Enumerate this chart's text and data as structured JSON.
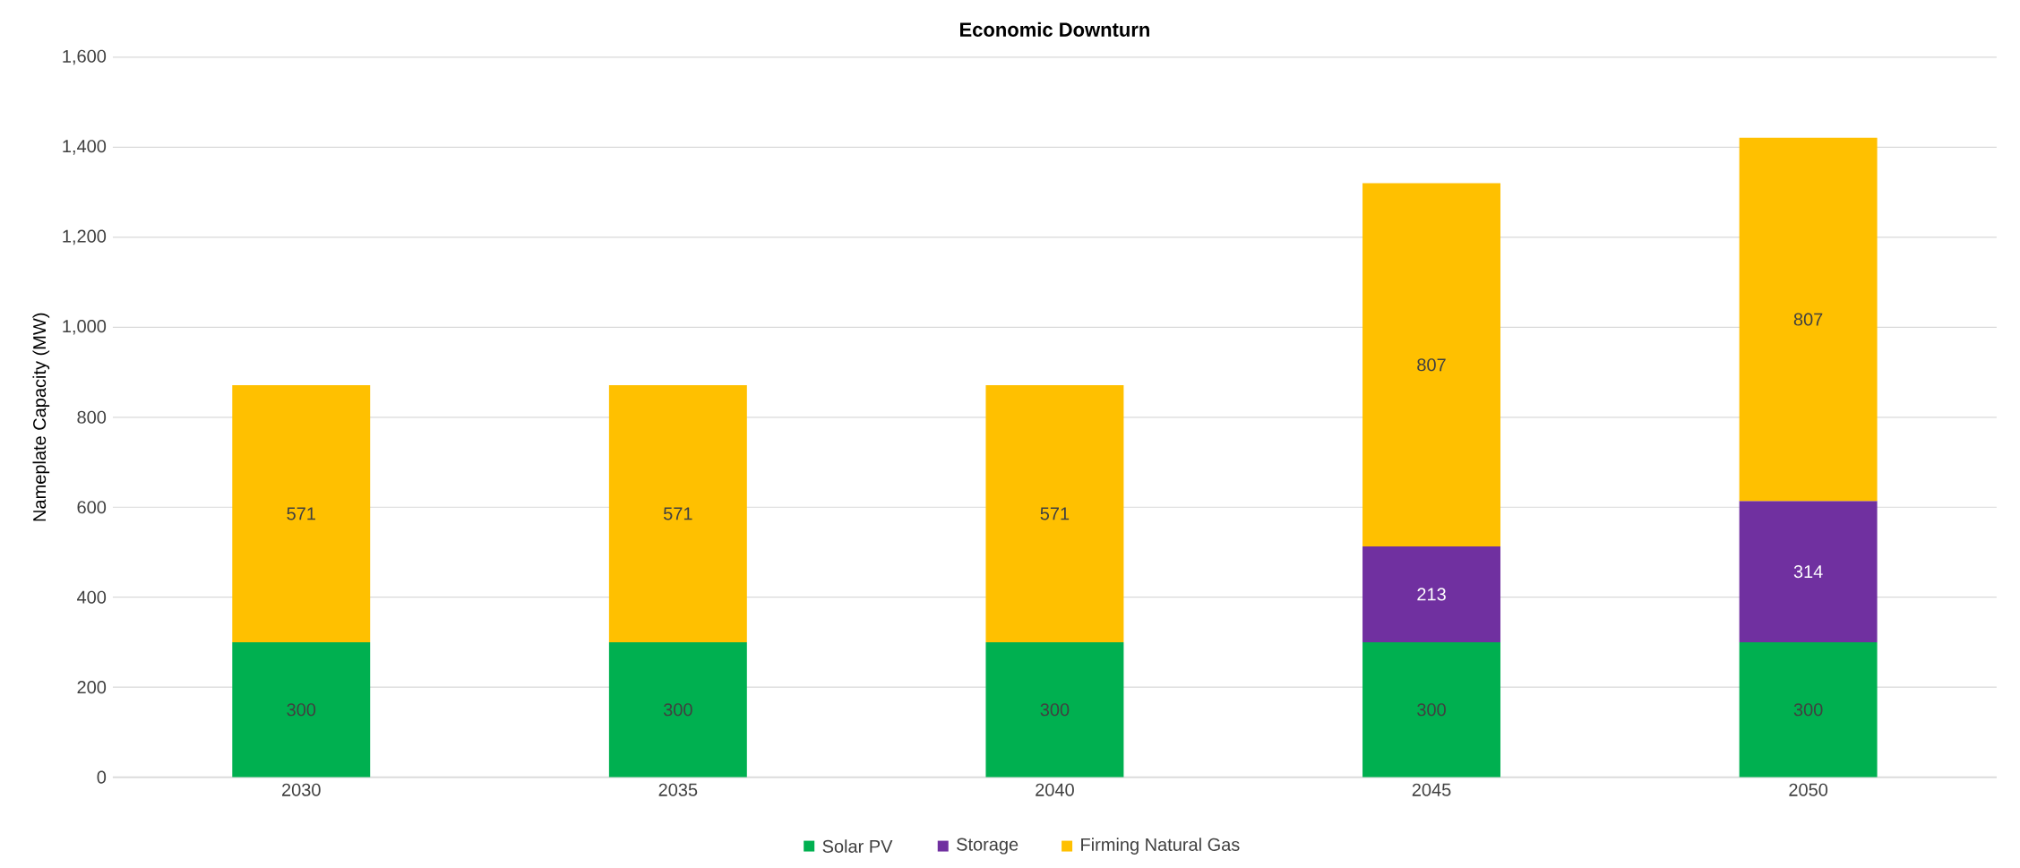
{
  "chart_data": {
    "type": "bar",
    "stacked": true,
    "title": "Economic Downturn",
    "ylabel": "Nameplate Capacity (MW)",
    "categories": [
      "2030",
      "2035",
      "2040",
      "2045",
      "2050"
    ],
    "series": [
      {
        "name": "Solar PV",
        "color": "#00b050",
        "values": [
          300,
          300,
          300,
          300,
          300
        ]
      },
      {
        "name": "Storage",
        "color": "#7030a0",
        "values": [
          null,
          null,
          null,
          213,
          314
        ]
      },
      {
        "name": "Firming Natural Gas",
        "color": "#ffc000",
        "values": [
          571,
          571,
          571,
          807,
          807
        ]
      }
    ],
    "ylim": [
      0,
      1600
    ],
    "yticks": [
      0,
      200,
      400,
      600,
      800,
      {
        "value": 1000,
        "label": "1,000"
      },
      {
        "value": 1200,
        "label": "1,200"
      },
      {
        "value": 1400,
        "label": "1,400"
      },
      {
        "value": 1600,
        "label": "1,600"
      }
    ],
    "grid": "y",
    "legend": "bottom",
    "data_labels": true
  }
}
